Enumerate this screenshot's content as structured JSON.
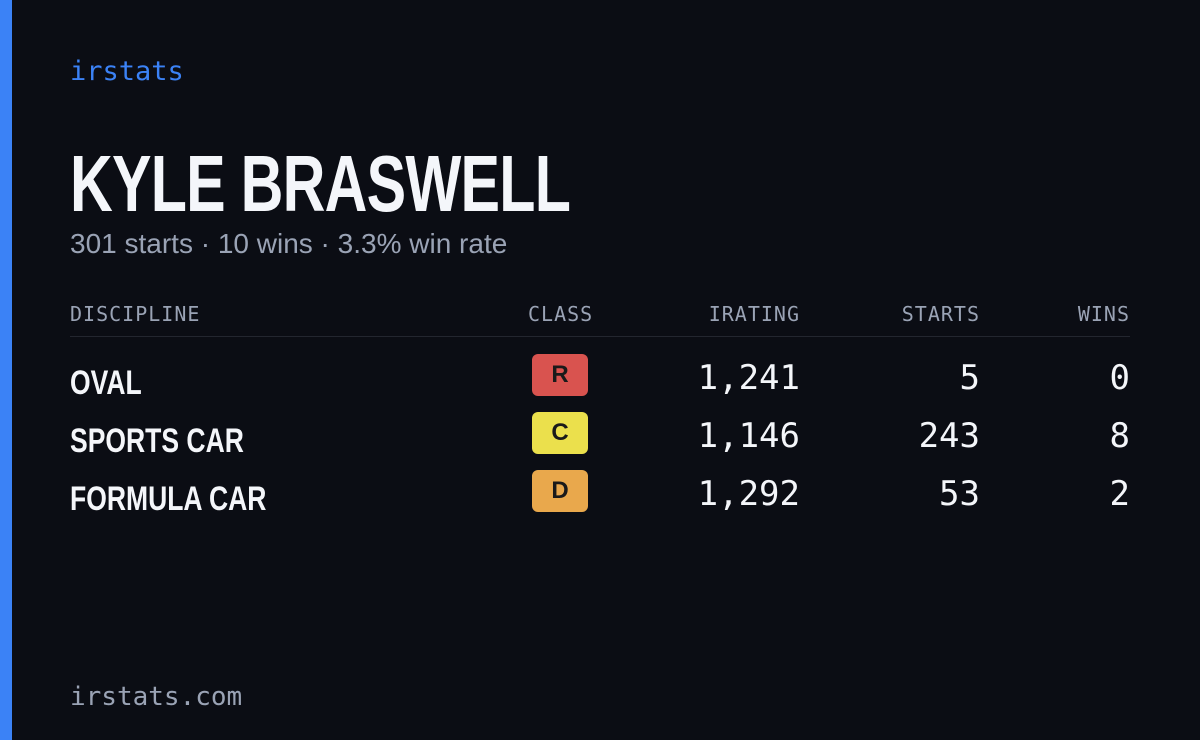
{
  "header": {
    "brand": "irstats",
    "name": "KYLE BRASWELL",
    "summary": "301 starts · 10 wins · 3.3% win rate"
  },
  "table": {
    "columns": [
      "DISCIPLINE",
      "CLASS",
      "IRATING",
      "STARTS",
      "WINS"
    ],
    "rows": [
      {
        "discipline": "OVAL",
        "class": "R",
        "class_color": "#d9534f",
        "irating": "1,241",
        "starts": "5",
        "wins": "0"
      },
      {
        "discipline": "SPORTS CAR",
        "class": "C",
        "class_color": "#ebe04c",
        "irating": "1,146",
        "starts": "243",
        "wins": "8"
      },
      {
        "discipline": "FORMULA CAR",
        "class": "D",
        "class_color": "#e9a84c",
        "irating": "1,292",
        "starts": "53",
        "wins": "2"
      }
    ]
  },
  "footer": {
    "url": "irstats.com"
  }
}
